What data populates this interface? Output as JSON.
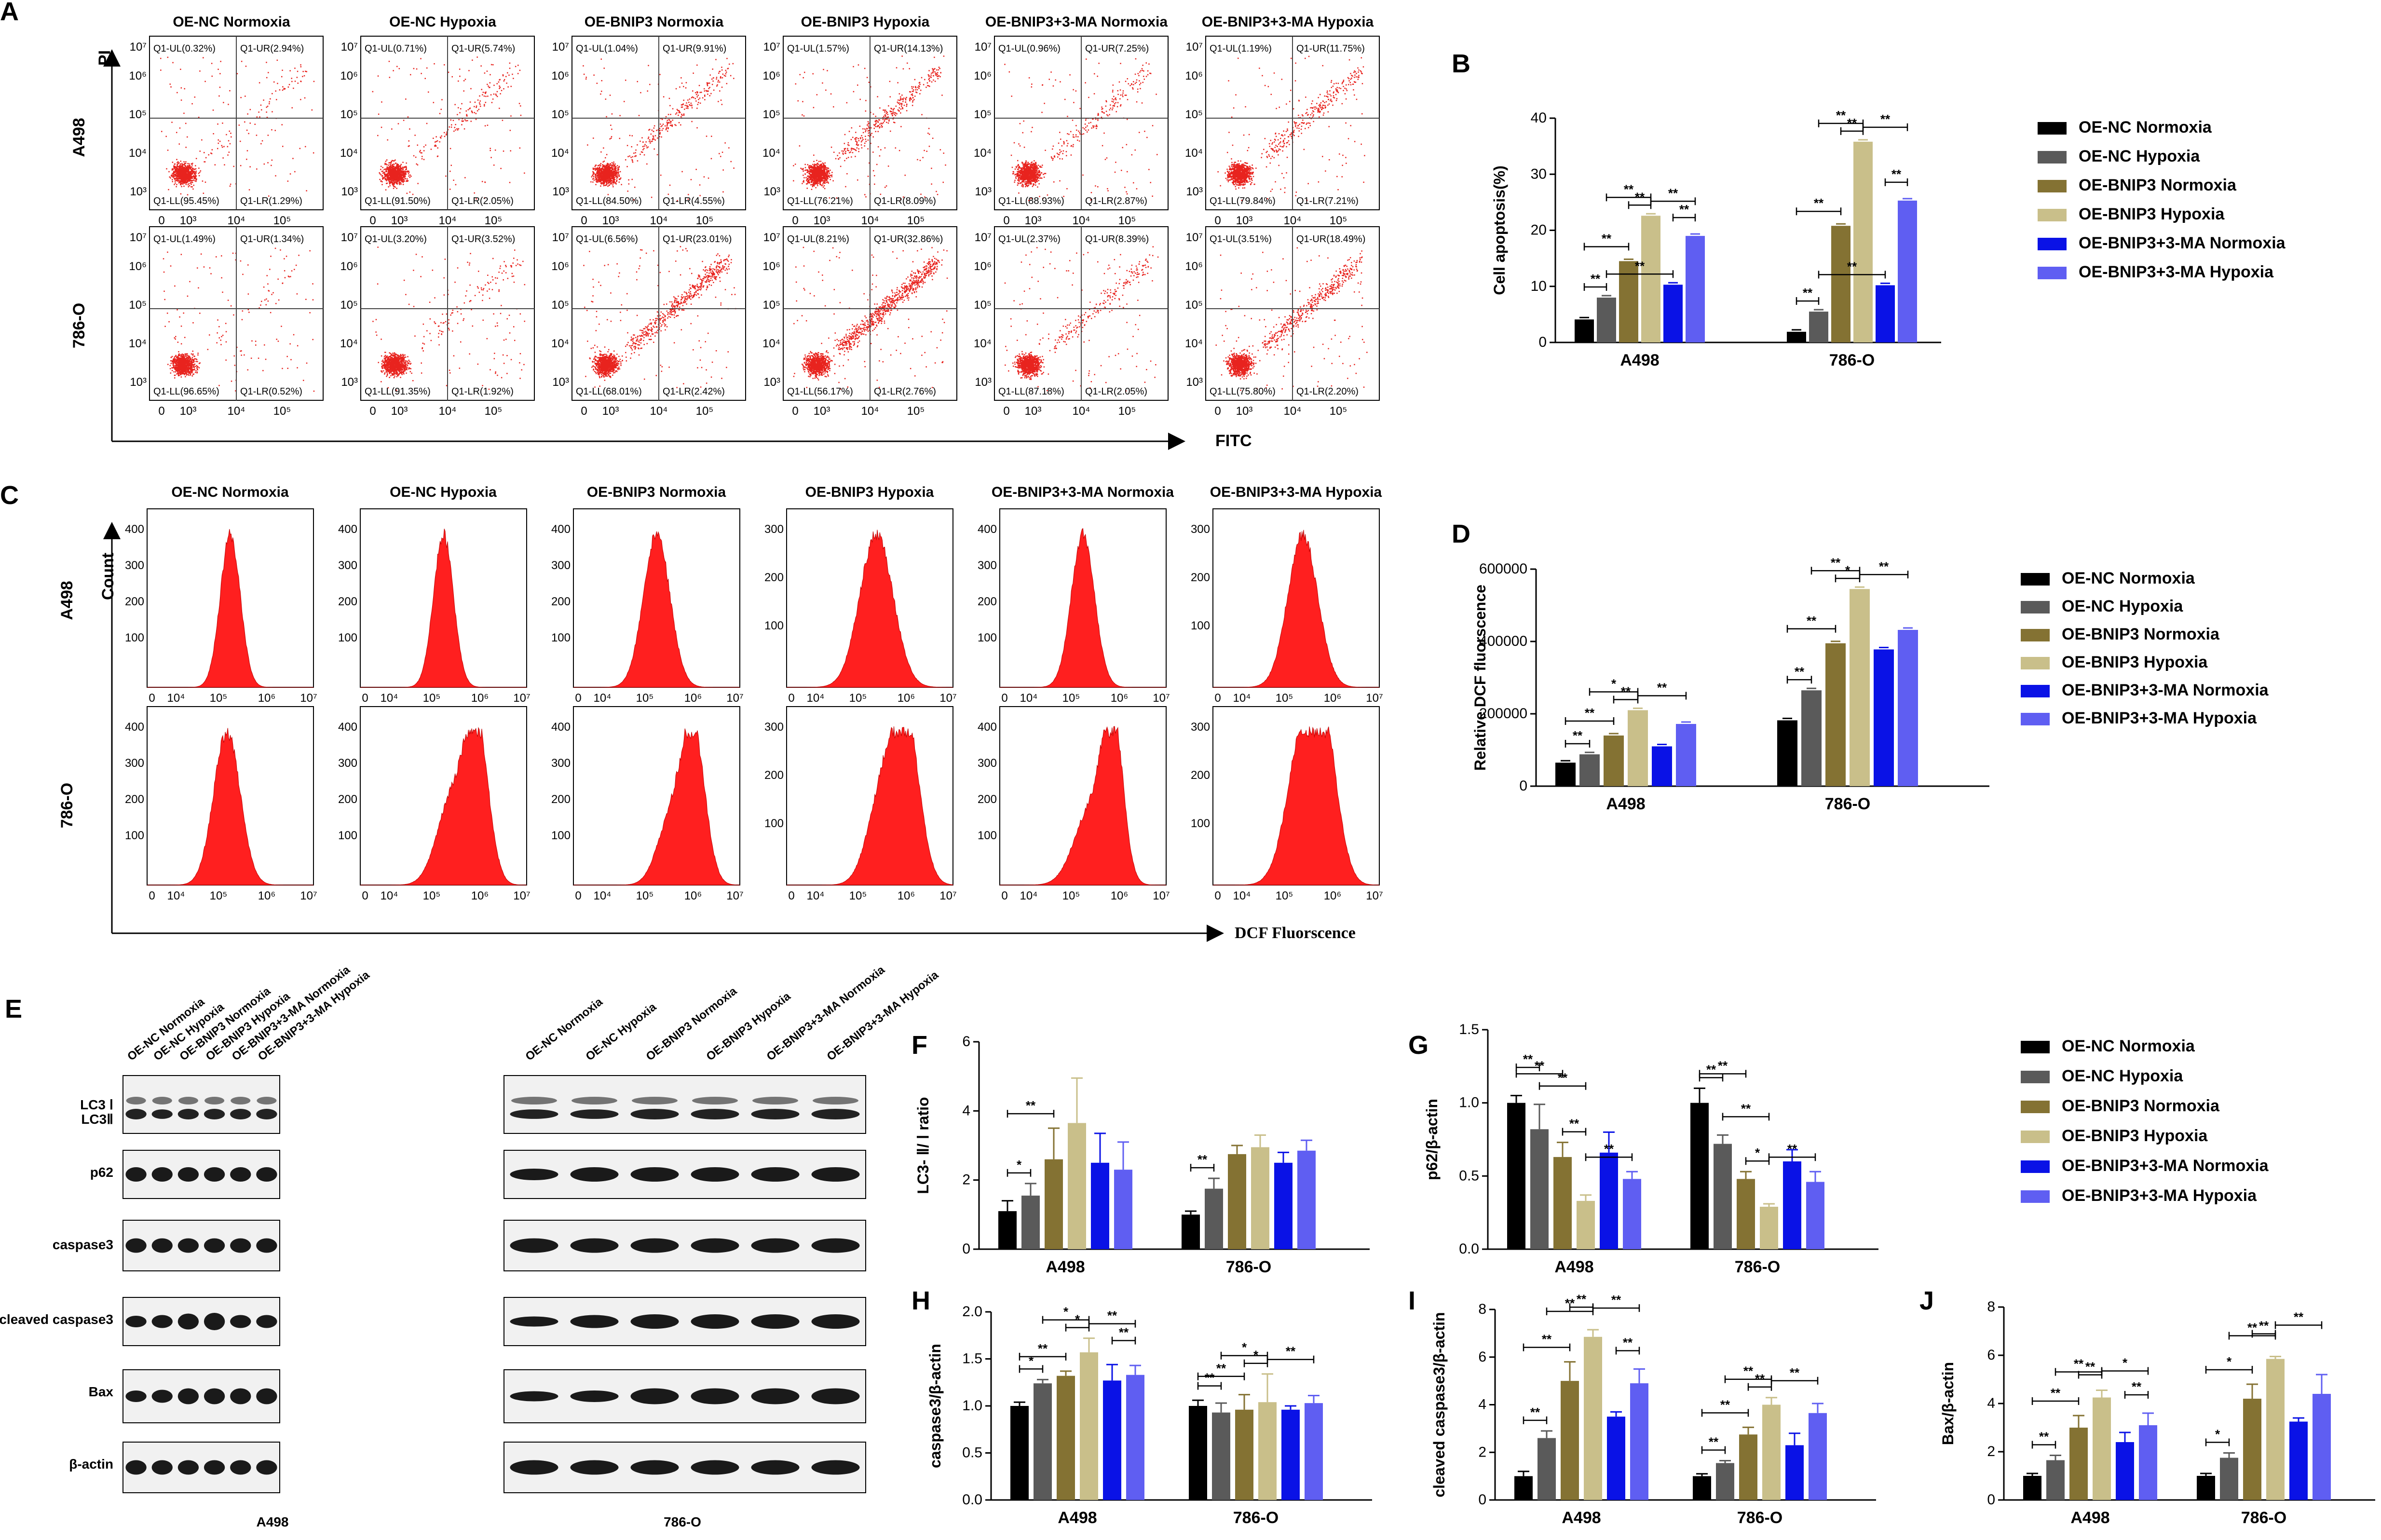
{
  "panels": {
    "A": "A",
    "B": "B",
    "C": "C",
    "D": "D",
    "E": "E",
    "F": "F",
    "G": "G",
    "H": "H",
    "I": "I",
    "J": "J"
  },
  "conditions": [
    "OE-NC Normoxia",
    "OE-NC Hypoxia",
    "OE-BNIP3 Normoxia",
    "OE-BNIP3 Hypoxia",
    "OE-BNIP3+3-MA Normoxia",
    "OE-BNIP3+3-MA Hypoxia"
  ],
  "cell_lines": [
    "A498",
    "786-O"
  ],
  "colors": [
    "#000000",
    "#5a5a5a",
    "#847233",
    "#c9bf8a",
    "#0a12e6",
    "#5f5ef2"
  ],
  "flow": {
    "y_axis": "PI",
    "x_axis": "FITC",
    "ticks": [
      "0",
      "10³",
      "10⁴",
      "10⁵",
      "10⁶",
      "10⁷"
    ],
    "quadrants": [
      [
        [
          "Q1-UL(0.32%)",
          "Q1-UR(2.94%)",
          "Q1-LL(95.45%)",
          "Q1-LR(1.29%)"
        ],
        [
          "Q1-UL(0.71%)",
          "Q1-UR(5.74%)",
          "Q1-LL(91.50%)",
          "Q1-LR(2.05%)"
        ],
        [
          "Q1-UL(1.04%)",
          "Q1-UR(9.91%)",
          "Q1-LL(84.50%)",
          "Q1-LR(4.55%)"
        ],
        [
          "Q1-UL(1.57%)",
          "Q1-UR(14.13%)",
          "Q1-LL(76.21%)",
          "Q1-LR(8.09%)"
        ],
        [
          "Q1-UL(0.96%)",
          "Q1-UR(7.25%)",
          "Q1-LL(88.93%)",
          "Q1-LR(2.87%)"
        ],
        [
          "Q1-UL(1.19%)",
          "Q1-UR(11.75%)",
          "Q1-LL(79.84%)",
          "Q1-LR(7.21%)"
        ]
      ],
      [
        [
          "Q1-UL(1.49%)",
          "Q1-UR(1.34%)",
          "Q1-LL(96.65%)",
          "Q1-LR(0.52%)"
        ],
        [
          "Q1-UL(3.20%)",
          "Q1-UR(3.52%)",
          "Q1-LL(91.35%)",
          "Q1-LR(1.92%)"
        ],
        [
          "Q1-UL(6.56%)",
          "Q1-UR(23.01%)",
          "Q1-LL(68.01%)",
          "Q1-LR(2.42%)"
        ],
        [
          "Q1-UL(8.21%)",
          "Q1-UR(32.86%)",
          "Q1-LL(56.17%)",
          "Q1-LR(2.76%)"
        ],
        [
          "Q1-UL(2.37%)",
          "Q1-UR(8.39%)",
          "Q1-LL(87.18%)",
          "Q1-LR(2.05%)"
        ],
        [
          "Q1-UL(3.51%)",
          "Q1-UR(18.49%)",
          "Q1-LL(75.80%)",
          "Q1-LR(2.20%)"
        ]
      ]
    ]
  },
  "histo": {
    "y_axis": "Count",
    "x_axis": "DCF Fluorscence",
    "ticks": [
      "0",
      "10⁴",
      "10⁵",
      "10⁶",
      "10⁷"
    ]
  },
  "blot": {
    "markers": [
      "LC3 Ⅰ",
      "LC3Ⅱ",
      "p62",
      "caspase3",
      "cleaved caspase3",
      "Bax",
      "β-actin"
    ]
  },
  "chart_data": [
    {
      "panel": "B",
      "type": "bar",
      "title": "",
      "ylabel": "Cell apoptosis(%)",
      "categories": [
        "A498",
        "786-O"
      ],
      "ylim": [
        0,
        40
      ],
      "yticks": [
        "0",
        "10",
        "20",
        "30",
        "40"
      ],
      "series": [
        {
          "name": "OE-NC Normoxia",
          "values": [
            4.1,
            1.9
          ]
        },
        {
          "name": "OE-NC Hypoxia",
          "values": [
            8.0,
            5.5
          ]
        },
        {
          "name": "OE-BNIP3 Normoxia",
          "values": [
            14.5,
            20.8
          ]
        },
        {
          "name": "OE-BNIP3 Hypoxia",
          "values": [
            22.6,
            35.8
          ]
        },
        {
          "name": "OE-BNIP3+3-MA Normoxia",
          "values": [
            10.3,
            10.2
          ]
        },
        {
          "name": "OE-BNIP3+3-MA Hypoxia",
          "values": [
            19.0,
            25.3
          ]
        }
      ],
      "significance": [
        "**",
        "**",
        "**",
        "**",
        "**",
        "**",
        "**",
        "**",
        "**",
        "**",
        "**",
        "**",
        "**",
        "**"
      ]
    },
    {
      "panel": "D",
      "type": "bar",
      "ylabel": "Relative DCF fluorscence",
      "categories": [
        "A498",
        "786-O"
      ],
      "ylim": [
        0,
        600000
      ],
      "yticks": [
        "0",
        "200000",
        "400000",
        "600000"
      ],
      "series": [
        {
          "name": "OE-NC Normoxia",
          "values": [
            65000,
            182000
          ]
        },
        {
          "name": "OE-NC Hypoxia",
          "values": [
            88000,
            265000
          ]
        },
        {
          "name": "OE-BNIP3 Normoxia",
          "values": [
            140000,
            395000
          ]
        },
        {
          "name": "OE-BNIP3 Hypoxia",
          "values": [
            210000,
            545000
          ]
        },
        {
          "name": "OE-BNIP3+3-MA Normoxia",
          "values": [
            110000,
            378000
          ]
        },
        {
          "name": "OE-BNIP3+3-MA Hypoxia",
          "values": [
            172000,
            432000
          ]
        }
      ],
      "significance": [
        "**",
        "**",
        "*",
        "**",
        "**",
        "**",
        "**",
        "**",
        "*",
        "**"
      ]
    },
    {
      "panel": "F",
      "type": "bar",
      "ylabel": "LC3- Ⅱ/ Ⅰ ratio",
      "categories": [
        "A498",
        "786-O"
      ],
      "ylim": [
        0,
        6
      ],
      "yticks": [
        "0",
        "2",
        "4",
        "6"
      ],
      "series": [
        {
          "name": "OE-NC Normoxia",
          "values": [
            1.1,
            1.0
          ]
        },
        {
          "name": "OE-NC Hypoxia",
          "values": [
            1.55,
            1.75
          ]
        },
        {
          "name": "OE-BNIP3 Normoxia",
          "values": [
            2.6,
            2.75
          ]
        },
        {
          "name": "OE-BNIP3 Hypoxia",
          "values": [
            3.65,
            2.95
          ]
        },
        {
          "name": "OE-BNIP3+3-MA Normoxia",
          "values": [
            2.5,
            2.5
          ]
        },
        {
          "name": "OE-BNIP3+3-MA Hypoxia",
          "values": [
            2.3,
            2.85
          ]
        }
      ],
      "errors": [
        [
          0.3,
          0.1
        ],
        [
          0.35,
          0.3
        ],
        [
          0.9,
          0.25
        ],
        [
          1.3,
          0.35
        ],
        [
          0.85,
          0.3
        ],
        [
          0.8,
          0.3
        ]
      ],
      "significance": [
        "*",
        "**",
        "**"
      ]
    },
    {
      "panel": "G",
      "type": "bar",
      "ylabel": "p62/β-actin",
      "categories": [
        "A498",
        "786-O"
      ],
      "ylim": [
        0,
        1.5
      ],
      "yticks": [
        "0.0",
        "0.5",
        "1.0",
        "1.5"
      ],
      "series": [
        {
          "name": "OE-NC Normoxia",
          "values": [
            1.0,
            1.0
          ]
        },
        {
          "name": "OE-NC Hypoxia",
          "values": [
            0.82,
            0.72
          ]
        },
        {
          "name": "OE-BNIP3 Normoxia",
          "values": [
            0.63,
            0.48
          ]
        },
        {
          "name": "OE-BNIP3 Hypoxia",
          "values": [
            0.33,
            0.29
          ]
        },
        {
          "name": "OE-BNIP3+3-MA Normoxia",
          "values": [
            0.66,
            0.6
          ]
        },
        {
          "name": "OE-BNIP3+3-MA Hypoxia",
          "values": [
            0.48,
            0.46
          ]
        }
      ],
      "errors": [
        [
          0.05,
          0.1
        ],
        [
          0.17,
          0.06
        ],
        [
          0.1,
          0.05
        ],
        [
          0.04,
          0.02
        ],
        [
          0.14,
          0.08
        ],
        [
          0.05,
          0.07
        ]
      ],
      "significance": [
        "**",
        "**",
        "**",
        "**",
        "**",
        "**",
        "**",
        "**",
        "*",
        "**"
      ]
    },
    {
      "panel": "H",
      "type": "bar",
      "ylabel": "caspase3/β-actin",
      "categories": [
        "A498",
        "786-O"
      ],
      "ylim": [
        0,
        2.0
      ],
      "yticks": [
        "0.0",
        "0.5",
        "1.0",
        "1.5",
        "2.0"
      ],
      "series": [
        {
          "name": "OE-NC Normoxia",
          "values": [
            1.0,
            1.0
          ]
        },
        {
          "name": "OE-NC Hypoxia",
          "values": [
            1.24,
            0.93
          ]
        },
        {
          "name": "OE-BNIP3 Normoxia",
          "values": [
            1.32,
            0.96
          ]
        },
        {
          "name": "OE-BNIP3 Hypoxia",
          "values": [
            1.57,
            1.04
          ]
        },
        {
          "name": "OE-BNIP3+3-MA Normoxia",
          "values": [
            1.27,
            0.96
          ]
        },
        {
          "name": "OE-BNIP3+3-MA Hypoxia",
          "values": [
            1.33,
            1.03
          ]
        }
      ],
      "errors": [
        [
          0.04,
          0.06
        ],
        [
          0.04,
          0.1
        ],
        [
          0.05,
          0.16
        ],
        [
          0.15,
          0.3
        ],
        [
          0.17,
          0.04
        ],
        [
          0.1,
          0.08
        ]
      ],
      "significance": [
        "*",
        "**",
        "*",
        "*",
        "**",
        "**",
        "**",
        "**",
        "*",
        "*",
        "**"
      ]
    },
    {
      "panel": "I",
      "type": "bar",
      "ylabel": "cleaved caspase3/β-actin",
      "categories": [
        "A498",
        "786-O"
      ],
      "ylim": [
        0,
        8
      ],
      "yticks": [
        "0",
        "2",
        "4",
        "6",
        "8"
      ],
      "series": [
        {
          "name": "OE-NC Normoxia",
          "values": [
            1.0,
            1.0
          ]
        },
        {
          "name": "OE-NC Hypoxia",
          "values": [
            2.6,
            1.55
          ]
        },
        {
          "name": "OE-BNIP3 Normoxia",
          "values": [
            5.0,
            2.75
          ]
        },
        {
          "name": "OE-BNIP3 Hypoxia",
          "values": [
            6.85,
            4.0
          ]
        },
        {
          "name": "OE-BNIP3+3-MA Normoxia",
          "values": [
            3.5,
            2.3
          ]
        },
        {
          "name": "OE-BNIP3+3-MA Hypoxia",
          "values": [
            4.9,
            3.65
          ]
        }
      ],
      "errors": [
        [
          0.2,
          0.1
        ],
        [
          0.3,
          0.1
        ],
        [
          0.8,
          0.3
        ],
        [
          0.3,
          0.3
        ],
        [
          0.2,
          0.5
        ],
        [
          0.6,
          0.4
        ]
      ],
      "significance": [
        "**",
        "**",
        "**",
        "**",
        "**",
        "**",
        "**",
        "**",
        "**",
        "**",
        "**"
      ]
    },
    {
      "panel": "J",
      "type": "bar",
      "ylabel": "Bax/β-actin",
      "categories": [
        "A498",
        "786-O"
      ],
      "ylim": [
        0,
        8
      ],
      "yticks": [
        "0",
        "2",
        "4",
        "6",
        "8"
      ],
      "series": [
        {
          "name": "OE-NC Normoxia",
          "values": [
            1.0,
            1.0
          ]
        },
        {
          "name": "OE-NC Hypoxia",
          "values": [
            1.65,
            1.75
          ]
        },
        {
          "name": "OE-BNIP3 Normoxia",
          "values": [
            3.0,
            4.2
          ]
        },
        {
          "name": "OE-BNIP3 Hypoxia",
          "values": [
            4.25,
            5.85
          ]
        },
        {
          "name": "OE-BNIP3+3-MA Normoxia",
          "values": [
            2.4,
            3.25
          ]
        },
        {
          "name": "OE-BNIP3+3-MA Hypoxia",
          "values": [
            3.1,
            4.4
          ]
        }
      ],
      "errors": [
        [
          0.1,
          0.1
        ],
        [
          0.2,
          0.2
        ],
        [
          0.5,
          0.6
        ],
        [
          0.3,
          0.1
        ],
        [
          0.4,
          0.15
        ],
        [
          0.5,
          0.8
        ]
      ],
      "significance": [
        "**",
        "**",
        "**",
        "**",
        "*",
        "**",
        "*",
        "*",
        "**",
        "**",
        "**"
      ]
    }
  ]
}
